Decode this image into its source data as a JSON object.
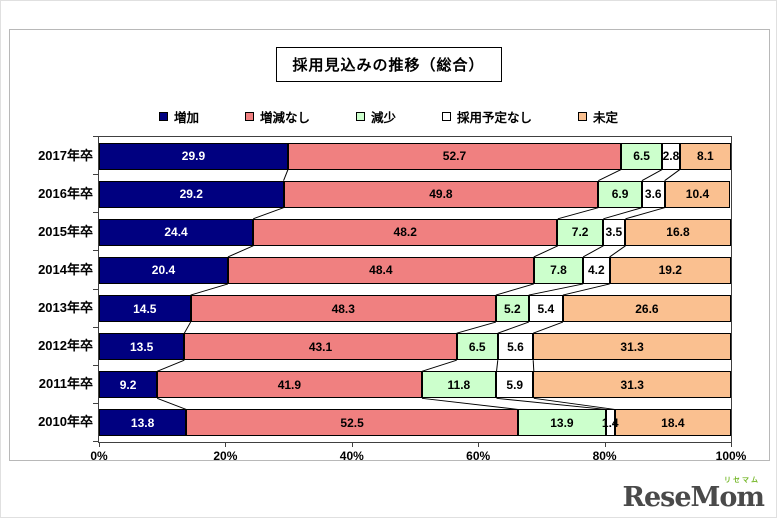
{
  "title": "採用見込みの推移（総合）",
  "chart_data": {
    "type": "bar",
    "orientation": "horizontal-stacked",
    "title": "採用見込みの推移（総合）",
    "categories": [
      "2017年卒",
      "2016年卒",
      "2015年卒",
      "2014年卒",
      "2013年卒",
      "2012年卒",
      "2011年卒",
      "2010年卒"
    ],
    "series": [
      {
        "name": "増加",
        "color": "#000080",
        "text_color": "#ffffff",
        "values": [
          29.9,
          29.2,
          24.4,
          20.4,
          14.5,
          13.5,
          9.2,
          13.8
        ]
      },
      {
        "name": "増減なし",
        "color": "#F08080",
        "text_color": "#000000",
        "values": [
          52.7,
          49.8,
          48.2,
          48.4,
          48.3,
          43.1,
          41.9,
          52.5
        ]
      },
      {
        "name": "減少",
        "color": "#CCFFCC",
        "text_color": "#000000",
        "values": [
          6.5,
          6.9,
          7.2,
          7.8,
          5.2,
          6.5,
          11.8,
          13.9
        ]
      },
      {
        "name": "採用予定なし",
        "color": "#FFFFFF",
        "text_color": "#000000",
        "values": [
          2.8,
          3.6,
          3.5,
          4.2,
          5.4,
          5.6,
          5.9,
          1.4
        ]
      },
      {
        "name": "未定",
        "color": "#FAC090",
        "text_color": "#000000",
        "values": [
          8.1,
          10.4,
          16.8,
          19.2,
          26.6,
          31.3,
          31.3,
          18.4
        ]
      }
    ],
    "x_ticks": [
      "0%",
      "20%",
      "40%",
      "60%",
      "80%",
      "100%"
    ],
    "xlim": [
      0,
      100
    ],
    "legend_position": "top",
    "grid": false,
    "series_lines": true,
    "value_label_format": "one-decimal"
  },
  "watermark": {
    "brand": "ReseMom",
    "kana": "リセマム"
  }
}
